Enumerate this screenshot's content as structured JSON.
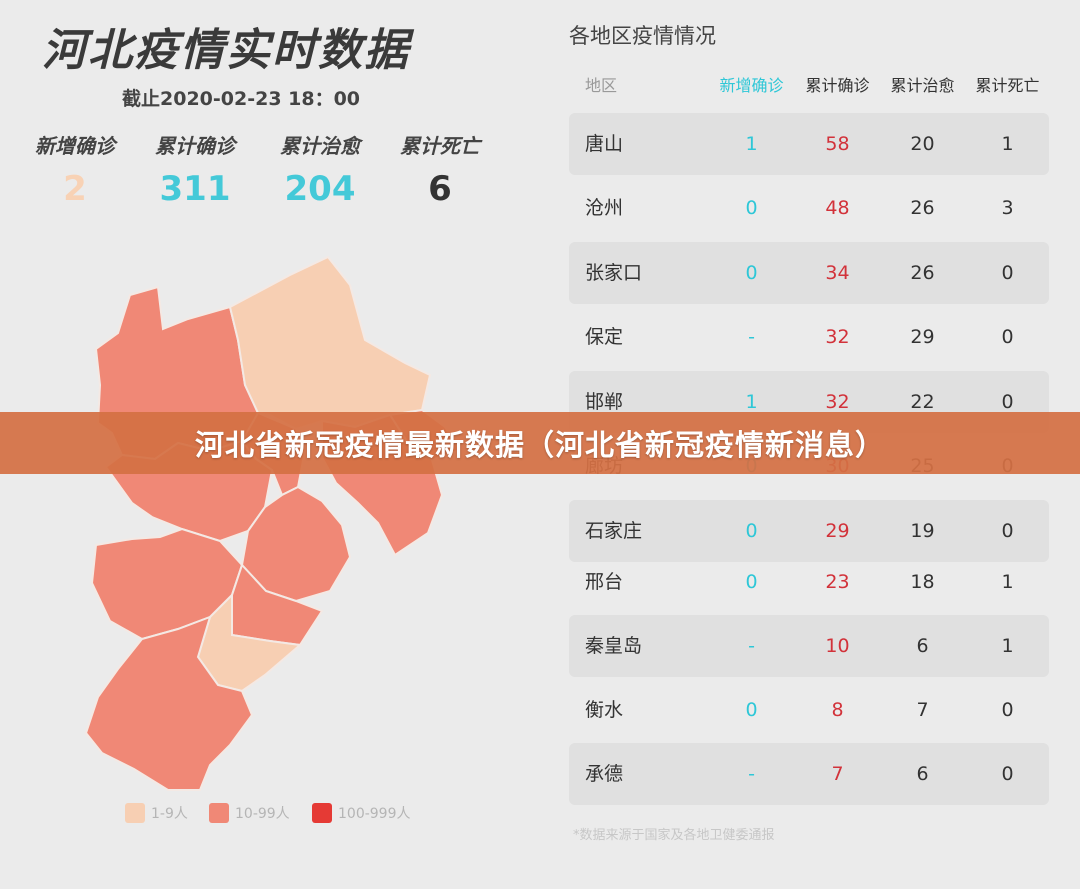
{
  "header": {
    "title": "河北疫情实时数据",
    "deadline": "截止2020-02-23 18：00"
  },
  "stats": [
    {
      "label": "新增确诊",
      "value": "2",
      "color": "#f8d2b5"
    },
    {
      "label": "累计确诊",
      "value": "311",
      "color": "#44c9d8"
    },
    {
      "label": "累计治愈",
      "value": "204",
      "color": "#44c9d8"
    },
    {
      "label": "累计死亡",
      "value": "6",
      "color": "#333333"
    }
  ],
  "map": {
    "colors": {
      "low": "#f7cfb3",
      "mid": "#f08876",
      "high": "#e53a35"
    },
    "legend": [
      {
        "label": "1-9人",
        "color": "#f7cfb3"
      },
      {
        "label": "10-99人",
        "color": "#f08876"
      },
      {
        "label": "100-999人",
        "color": "#e53a35"
      }
    ]
  },
  "table": {
    "title": "各地区疫情情况",
    "headers": [
      "地区",
      "新增确诊",
      "累计确诊",
      "累计治愈",
      "累计死亡"
    ],
    "rows": [
      {
        "name": "唐山",
        "new": "1",
        "confirmed": "58",
        "cured": "20",
        "dead": "1"
      },
      {
        "name": "沧州",
        "new": "0",
        "confirmed": "48",
        "cured": "26",
        "dead": "3"
      },
      {
        "name": "张家口",
        "new": "0",
        "confirmed": "34",
        "cured": "26",
        "dead": "0"
      },
      {
        "name": "保定",
        "new": "-",
        "confirmed": "32",
        "cured": "29",
        "dead": "0"
      },
      {
        "name": "邯郸",
        "new": "1",
        "confirmed": "32",
        "cured": "22",
        "dead": "0"
      },
      {
        "name": "廊坊",
        "new": "0",
        "confirmed": "30",
        "cured": "25",
        "dead": "0"
      },
      {
        "name": "石家庄",
        "new": "0",
        "confirmed": "29",
        "cured": "19",
        "dead": "0"
      },
      {
        "name": "邢台",
        "new": "0",
        "confirmed": "23",
        "cured": "18",
        "dead": "1"
      },
      {
        "name": "秦皇岛",
        "new": "-",
        "confirmed": "10",
        "cured": "6",
        "dead": "1"
      },
      {
        "name": "衡水",
        "new": "0",
        "confirmed": "8",
        "cured": "7",
        "dead": "0"
      },
      {
        "name": "承德",
        "new": "-",
        "confirmed": "7",
        "cured": "6",
        "dead": "0"
      }
    ],
    "footnote": "*数据来源于国家及各地卫健委通报"
  },
  "banner": {
    "text": "河北省新冠疫情最新数据（河北省新冠疫情新消息）"
  }
}
